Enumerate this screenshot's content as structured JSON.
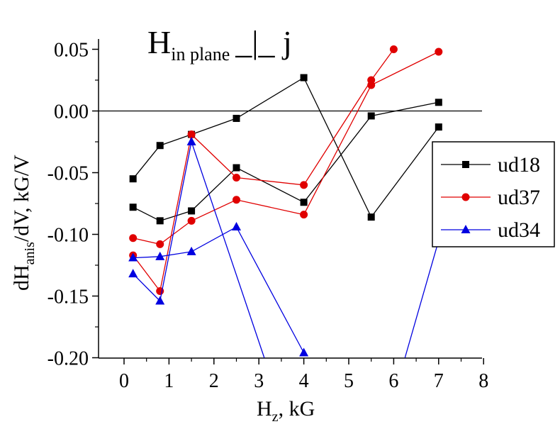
{
  "chart_data": {
    "type": "line",
    "title_main": "H",
    "title_sub": "in plane",
    "title_tail": "_|_ j",
    "xlabel_main": "H",
    "xlabel_sub": "z",
    "xlabel_tail": ", kG",
    "ylabel_main": "dH",
    "ylabel_sub": "anis",
    "ylabel_tail": "/dV, kG/V",
    "xlim": [
      -0.3,
      8
    ],
    "ylim": [
      -0.2,
      0.06
    ],
    "xticks": [
      "0",
      "1",
      "2",
      "3",
      "4",
      "5",
      "6",
      "7",
      "8"
    ],
    "yticks": [
      "-0.20",
      "-0.15",
      "-0.10",
      "-0.05",
      "0.00",
      "0.05"
    ],
    "zero_line": 0,
    "legend_position": "right",
    "series": [
      {
        "name": "ud18",
        "color": "#000000",
        "marker": "square",
        "points": [
          [
            0.2,
            -0.055
          ],
          [
            0.8,
            -0.028
          ],
          [
            1.5,
            -0.019
          ],
          [
            2.5,
            -0.006
          ],
          [
            4.0,
            0.027
          ],
          [
            5.5,
            -0.086
          ],
          [
            7.0,
            -0.013
          ]
        ],
        "points_b": [
          [
            0.2,
            -0.078
          ],
          [
            0.8,
            -0.089
          ],
          [
            1.5,
            -0.081
          ],
          [
            2.5,
            -0.046
          ],
          [
            4.0,
            -0.074
          ],
          [
            5.5,
            -0.004
          ],
          [
            7.0,
            0.007
          ]
        ]
      },
      {
        "name": "ud37",
        "color": "#e00000",
        "marker": "circle",
        "points": [
          [
            0.2,
            -0.103
          ],
          [
            0.8,
            -0.108
          ],
          [
            1.5,
            -0.089
          ],
          [
            2.5,
            -0.072
          ],
          [
            4.0,
            -0.084
          ],
          [
            5.5,
            0.021
          ],
          [
            7.0,
            0.048
          ]
        ],
        "points_b": [
          [
            0.2,
            -0.117
          ],
          [
            0.8,
            -0.146
          ],
          [
            1.5,
            -0.019
          ],
          [
            2.5,
            -0.054
          ],
          [
            4.0,
            -0.06
          ],
          [
            5.5,
            0.025
          ],
          [
            6.0,
            0.05
          ]
        ]
      },
      {
        "name": "ud34",
        "color": "#0000e0",
        "marker": "triangle",
        "points": [
          [
            0.2,
            -0.119
          ],
          [
            0.8,
            -0.118
          ],
          [
            1.5,
            -0.114
          ],
          [
            2.5,
            -0.094
          ],
          [
            4.0,
            -0.196
          ]
        ],
        "points_b": [
          [
            0.2,
            -0.132
          ],
          [
            0.8,
            -0.154
          ],
          [
            1.5,
            -0.025
          ],
          [
            3.12,
            -0.2
          ]
        ],
        "points_c": [
          [
            6.25,
            -0.2
          ],
          [
            7.0,
            -0.105
          ]
        ]
      }
    ]
  }
}
